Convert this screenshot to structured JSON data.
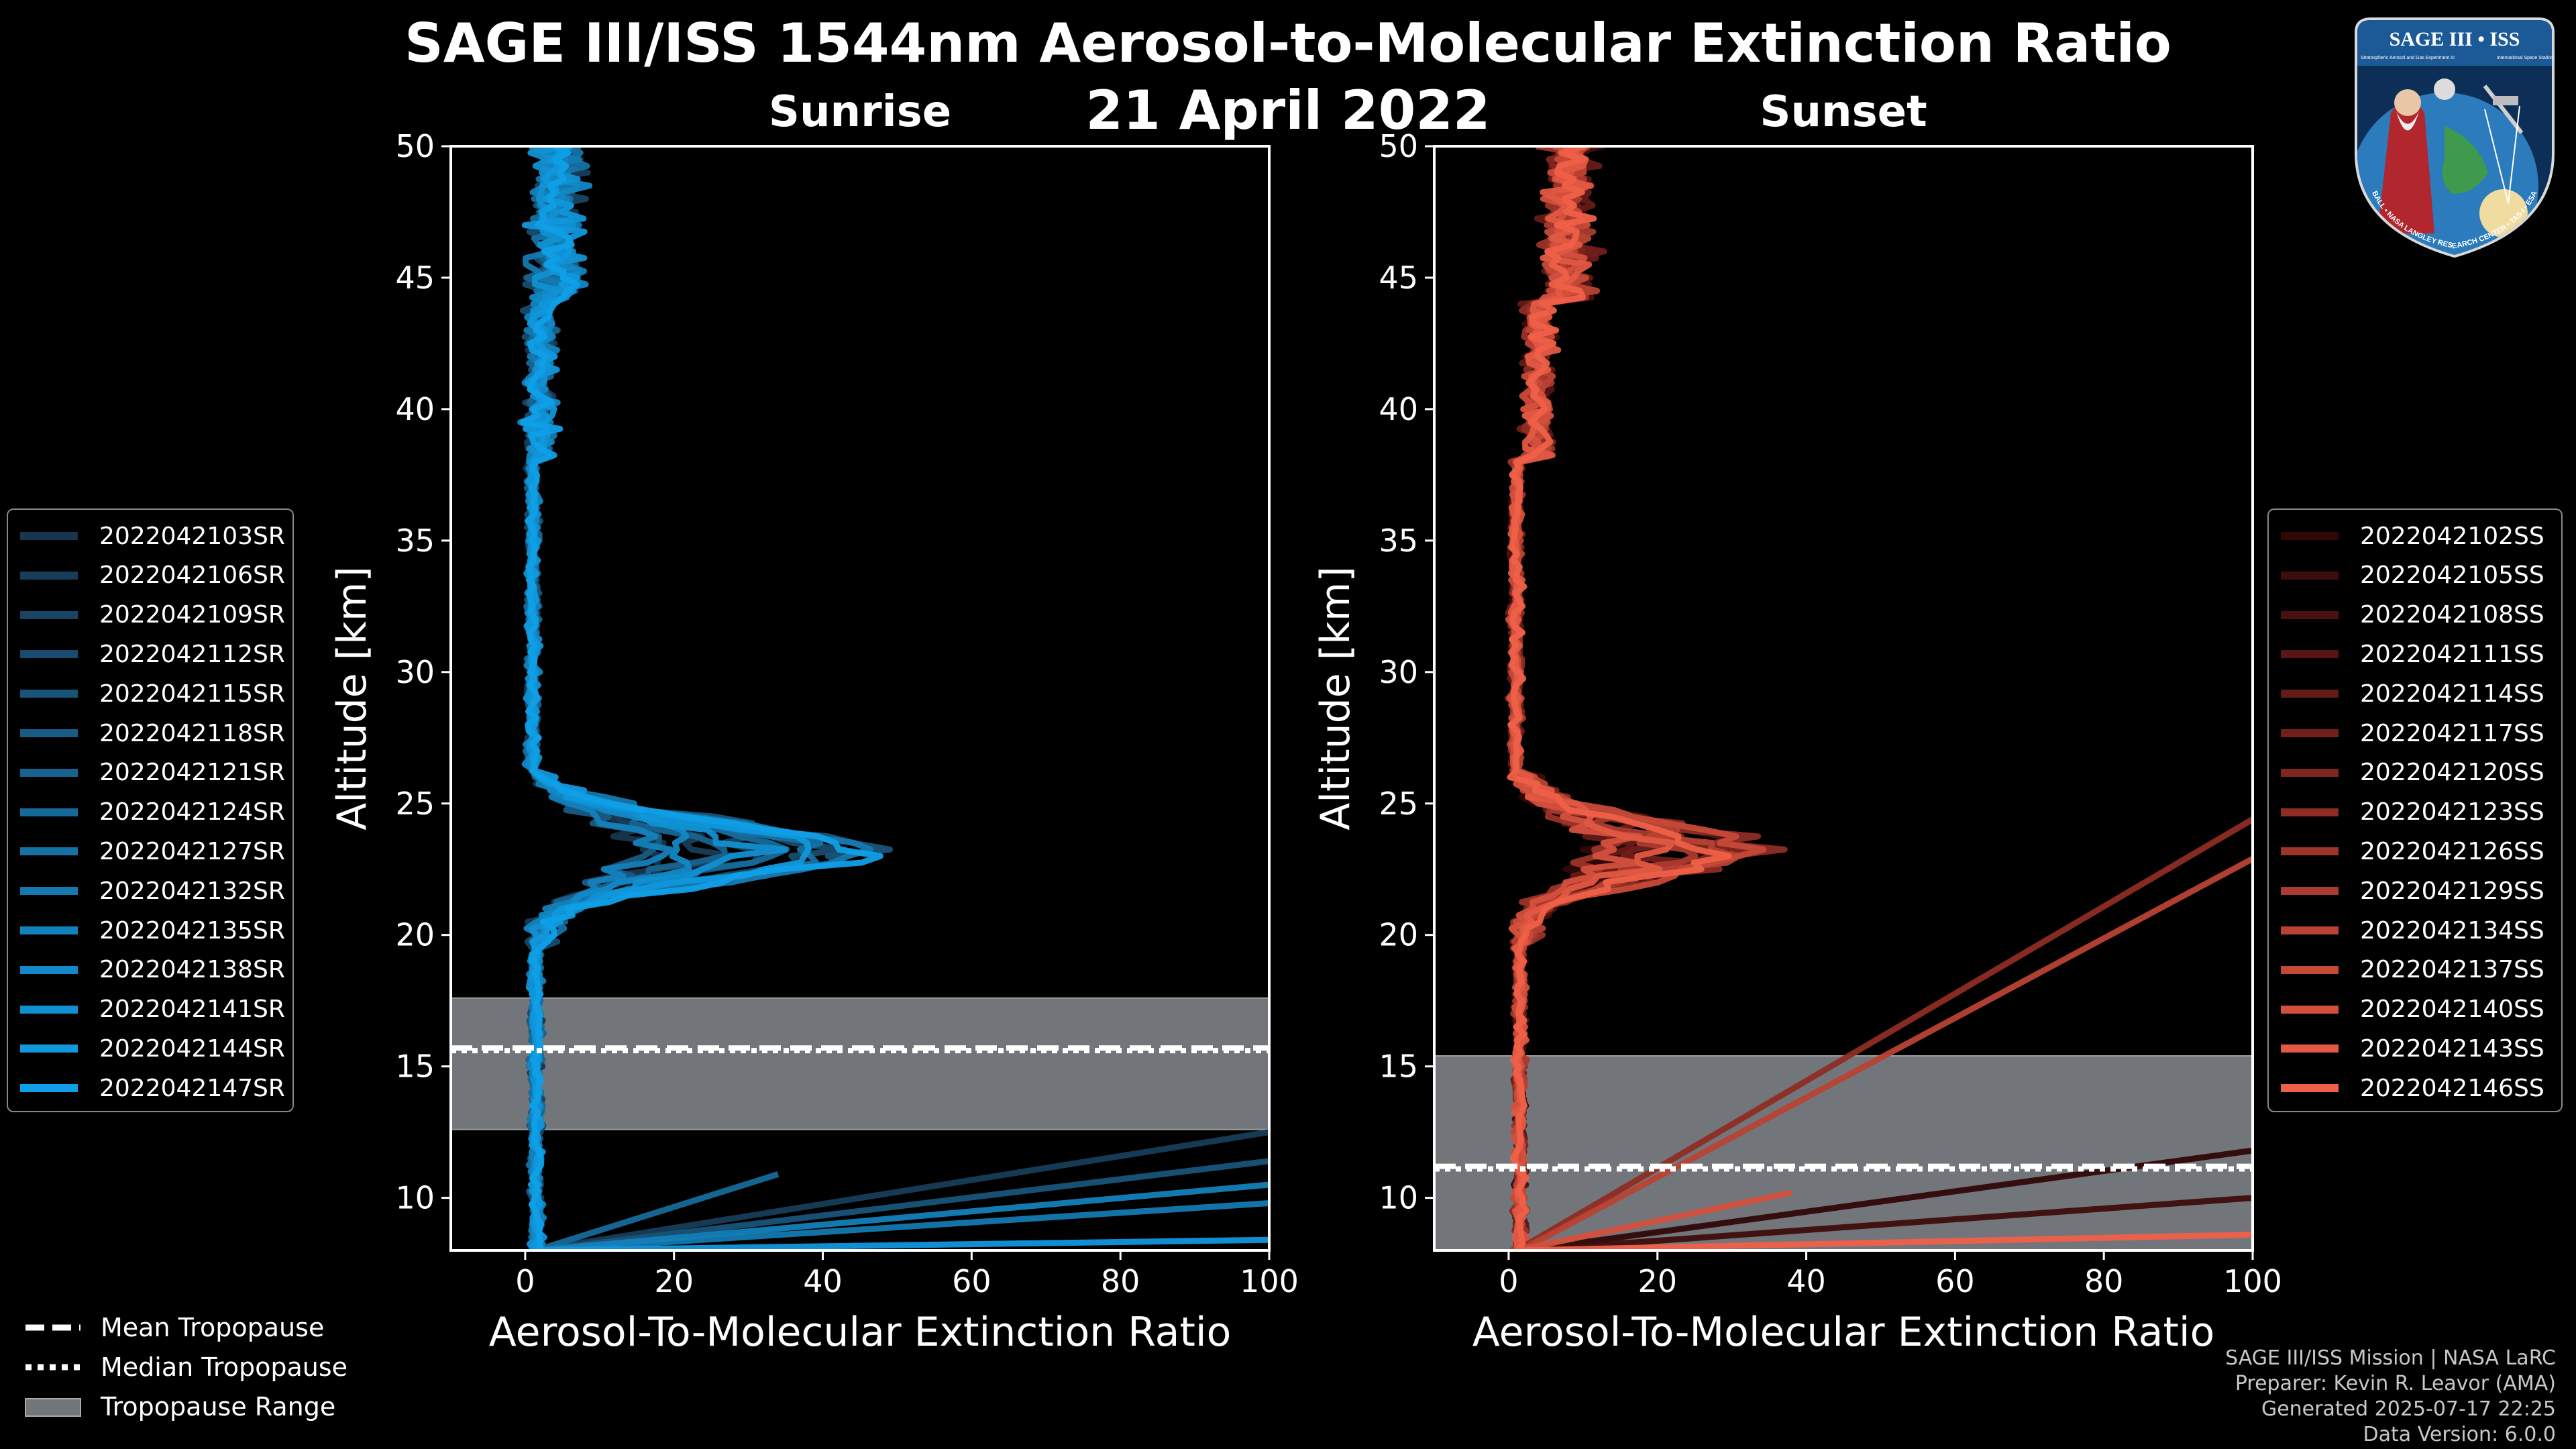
{
  "header": {
    "title": "SAGE III/ISS 1544nm Aerosol-to-Molecular Extinction Ratio",
    "subtitle": "21 April 2022"
  },
  "logo": {
    "top_text": "SAGE III • ISS",
    "small_left": "Stratospheric Aerosol and Gas Experiment III",
    "small_right": "International Space Station",
    "ring_text": "BALL • NASA LANGLEY RESEARCH CENTER • TAS-I • ESA"
  },
  "colors": {
    "sunrise": "#1a95d8",
    "sunset": "#e8584a",
    "tropopause_fill": "#72767b",
    "background": "#000000"
  },
  "chart_data": [
    {
      "type": "line",
      "panel": "sunrise",
      "title": "Sunrise",
      "xlabel": "Aerosol-To-Molecular Extinction Ratio",
      "ylabel": "Altitude [km]",
      "xlim": [
        -10,
        100
      ],
      "ylim": [
        8,
        50
      ],
      "xticks": [
        0,
        20,
        40,
        60,
        80,
        100
      ],
      "yticks": [
        10,
        15,
        20,
        25,
        30,
        35,
        40,
        45,
        50
      ],
      "tropopause": {
        "mean": 15.7,
        "median": 15.6,
        "range": [
          12.6,
          17.6
        ]
      },
      "series_names": [
        "2022042103SR",
        "2022042106SR",
        "2022042109SR",
        "2022042112SR",
        "2022042115SR",
        "2022042118SR",
        "2022042121SR",
        "2022042124SR",
        "2022042127SR",
        "2022042132SR",
        "2022042135SR",
        "2022042138SR",
        "2022042141SR",
        "2022042144SR",
        "2022042147SR"
      ],
      "series_colors": [
        "#17364d",
        "#183d58",
        "#184563",
        "#184c6e",
        "#185479",
        "#185b84",
        "#17638f",
        "#166a9a",
        "#1572a5",
        "#1479b0",
        "#1381bb",
        "#1288c6",
        "#1190d1",
        "#1097dc",
        "#0f9fe7"
      ]
    },
    {
      "type": "line",
      "panel": "sunset",
      "title": "Sunset",
      "xlabel": "Aerosol-To-Molecular Extinction Ratio",
      "ylabel": "Altitude [km]",
      "xlim": [
        -10,
        100
      ],
      "ylim": [
        8,
        50
      ],
      "xticks": [
        0,
        20,
        40,
        60,
        80,
        100
      ],
      "yticks": [
        10,
        15,
        20,
        25,
        30,
        35,
        40,
        45,
        50
      ],
      "tropopause": {
        "mean": 11.2,
        "median": 11.1,
        "range": [
          8.0,
          15.4
        ]
      },
      "series_names": [
        "2022042102SS",
        "2022042105SS",
        "2022042108SS",
        "2022042111SS",
        "2022042114SS",
        "2022042117SS",
        "2022042120SS",
        "2022042123SS",
        "2022042126SS",
        "2022042129SS",
        "2022042134SS",
        "2022042137SS",
        "2022042140SS",
        "2022042143SS",
        "2022042146SS"
      ],
      "series_colors": [
        "#300808",
        "#3d0d0d",
        "#4a1110",
        "#571614",
        "#641a17",
        "#721f1b",
        "#80261f",
        "#8e2d24",
        "#9c3429",
        "#aa3b2e",
        "#b84233",
        "#c64938",
        "#d4503d",
        "#e25842",
        "#ef6048"
      ]
    }
  ],
  "bottom_legend": {
    "mean": "Mean Tropopause",
    "median": "Median Tropopause",
    "range": "Tropopause Range"
  },
  "footer": {
    "line1": "SAGE III/ISS Mission | NASA LaRC",
    "line2": "Preparer: Kevin R. Leavor (AMA)",
    "line3": "Generated 2025-07-17 22:25",
    "line4": "Data Version: 6.0.0"
  }
}
